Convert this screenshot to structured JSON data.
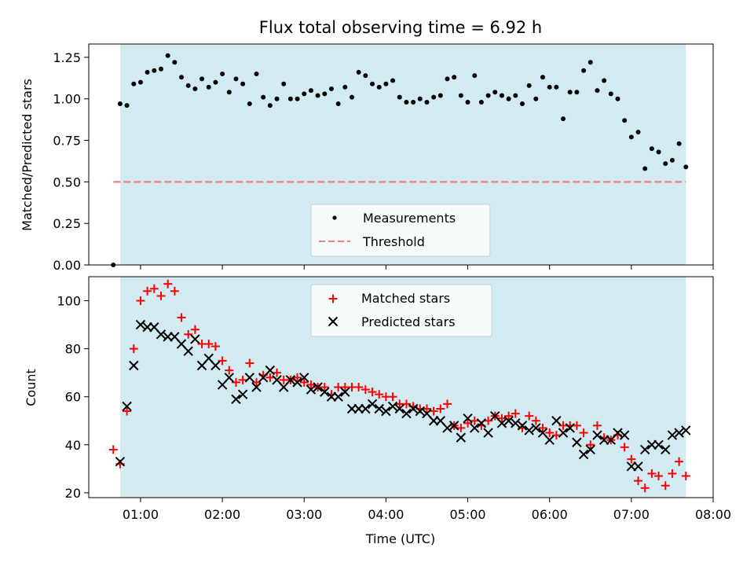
{
  "title": "Flux total observing time = 6.92 h",
  "colors": {
    "background": "#ffffff",
    "shade": "#add8e6",
    "measurement": "#000000",
    "threshold": "#f08080",
    "matched": "#ff0000",
    "predicted": "#000000"
  },
  "chart_data": [
    {
      "type": "scatter",
      "title": "Flux total observing time = 6.92 h",
      "xlabel": "",
      "ylabel": "Matched/Predicted stars",
      "xlim": [
        "00:22",
        "08:00"
      ],
      "ylim": [
        0,
        1.33
      ],
      "x_ticks": [],
      "y_ticks": [
        {
          "value": 0.0,
          "label": "0.00"
        },
        {
          "value": 0.25,
          "label": "0.25"
        },
        {
          "value": 0.5,
          "label": "0.50"
        },
        {
          "value": 0.75,
          "label": "0.75"
        },
        {
          "value": 1.0,
          "label": "1.00"
        },
        {
          "value": 1.25,
          "label": "1.25"
        }
      ],
      "shaded_span": {
        "x": [
          "00:45",
          "07:40"
        ],
        "color": "#add8e6"
      },
      "legend": {
        "position": "lower center",
        "entries": [
          "Measurements",
          "Threshold"
        ]
      },
      "series": [
        {
          "name": "Measurements",
          "marker": "dot",
          "color": "#000000",
          "x": [
            "00:40",
            "00:45",
            "00:50",
            "00:55",
            "01:00",
            "01:05",
            "01:10",
            "01:15",
            "01:20",
            "01:25",
            "01:30",
            "01:35",
            "01:40",
            "01:45",
            "01:50",
            "01:55",
            "02:00",
            "02:05",
            "02:10",
            "02:15",
            "02:20",
            "02:25",
            "02:30",
            "02:35",
            "02:40",
            "02:45",
            "02:50",
            "02:55",
            "03:00",
            "03:05",
            "03:10",
            "03:15",
            "03:20",
            "03:25",
            "03:30",
            "03:35",
            "03:40",
            "03:45",
            "03:50",
            "03:55",
            "04:00",
            "04:05",
            "04:10",
            "04:15",
            "04:20",
            "04:25",
            "04:30",
            "04:35",
            "04:40",
            "04:45",
            "04:50",
            "04:55",
            "05:00",
            "05:05",
            "05:10",
            "05:15",
            "05:20",
            "05:25",
            "05:30",
            "05:35",
            "05:40",
            "05:45",
            "05:50",
            "05:55",
            "06:00",
            "06:05",
            "06:10",
            "06:15",
            "06:20",
            "06:25",
            "06:30",
            "06:35",
            "06:40",
            "06:45",
            "06:50",
            "06:55",
            "07:00",
            "07:05",
            "07:10",
            "07:15",
            "07:20",
            "07:25",
            "07:30",
            "07:35",
            "07:40"
          ],
          "y": [
            0.0,
            0.97,
            0.96,
            1.09,
            1.1,
            1.16,
            1.17,
            1.18,
            1.26,
            1.22,
            1.13,
            1.08,
            1.06,
            1.12,
            1.07,
            1.1,
            1.15,
            1.04,
            1.12,
            1.09,
            0.97,
            1.15,
            1.01,
            0.96,
            1.0,
            1.09,
            1.0,
            1.0,
            1.03,
            1.05,
            1.02,
            1.03,
            1.06,
            0.97,
            1.07,
            1.01,
            1.16,
            1.14,
            1.09,
            1.07,
            1.09,
            1.11,
            1.01,
            0.98,
            0.98,
            1.0,
            0.98,
            1.01,
            1.02,
            1.12,
            1.13,
            1.02,
            0.98,
            1.14,
            0.98,
            1.02,
            1.04,
            1.02,
            1.0,
            1.02,
            0.97,
            1.08,
            1.0,
            1.13,
            1.07,
            1.07,
            0.88,
            1.04,
            1.04,
            1.17,
            1.22,
            1.05,
            1.11,
            1.03,
            1.0,
            0.87,
            0.77,
            0.8,
            0.58,
            0.7,
            0.68,
            0.61,
            0.63,
            0.73,
            0.59
          ]
        },
        {
          "name": "Threshold",
          "style": "dashed",
          "color": "#f08080",
          "x": [
            "00:40",
            "07:40"
          ],
          "y": [
            0.5,
            0.5
          ]
        }
      ]
    },
    {
      "type": "scatter",
      "title": "",
      "xlabel": "Time (UTC)",
      "ylabel": "Count",
      "xlim": [
        "00:22",
        "08:00"
      ],
      "ylim": [
        18,
        110
      ],
      "x_ticks": [
        "01:00",
        "02:00",
        "03:00",
        "04:00",
        "05:00",
        "06:00",
        "07:00",
        "08:00"
      ],
      "y_ticks": [
        {
          "value": 20,
          "label": "20"
        },
        {
          "value": 40,
          "label": "40"
        },
        {
          "value": 60,
          "label": "60"
        },
        {
          "value": 80,
          "label": "80"
        },
        {
          "value": 100,
          "label": "100"
        }
      ],
      "shaded_span": {
        "x": [
          "00:45",
          "07:40"
        ],
        "color": "#add8e6"
      },
      "legend": {
        "position": "upper center",
        "entries": [
          "Matched stars",
          "Predicted stars"
        ]
      },
      "series": [
        {
          "name": "Matched stars",
          "marker": "plus",
          "color": "#ff0000",
          "x": [
            "00:40",
            "00:45",
            "00:50",
            "00:55",
            "01:00",
            "01:05",
            "01:10",
            "01:15",
            "01:20",
            "01:25",
            "01:30",
            "01:35",
            "01:40",
            "01:45",
            "01:50",
            "01:55",
            "02:00",
            "02:05",
            "02:10",
            "02:15",
            "02:20",
            "02:25",
            "02:30",
            "02:35",
            "02:40",
            "02:45",
            "02:50",
            "02:55",
            "03:00",
            "03:05",
            "03:10",
            "03:15",
            "03:20",
            "03:25",
            "03:30",
            "03:35",
            "03:40",
            "03:45",
            "03:50",
            "03:55",
            "04:00",
            "04:05",
            "04:10",
            "04:15",
            "04:20",
            "04:25",
            "04:30",
            "04:35",
            "04:40",
            "04:45",
            "04:50",
            "04:55",
            "05:00",
            "05:05",
            "05:10",
            "05:15",
            "05:20",
            "05:25",
            "05:30",
            "05:35",
            "05:40",
            "05:45",
            "05:50",
            "05:55",
            "06:00",
            "06:05",
            "06:10",
            "06:15",
            "06:20",
            "06:25",
            "06:30",
            "06:35",
            "06:40",
            "06:45",
            "06:50",
            "06:55",
            "07:00",
            "07:05",
            "07:10",
            "07:15",
            "07:20",
            "07:25",
            "07:30",
            "07:35",
            "07:40"
          ],
          "y": [
            38,
            32,
            54,
            80,
            100,
            104,
            105,
            102,
            107,
            104,
            93,
            86,
            88,
            82,
            82,
            81,
            75,
            71,
            66,
            67,
            74,
            66,
            69,
            68,
            70,
            67,
            67,
            68,
            66,
            65,
            64,
            64,
            61,
            64,
            64,
            64,
            64,
            63,
            62,
            61,
            60,
            60,
            57,
            57,
            56,
            55,
            55,
            54,
            55,
            57,
            48,
            47,
            49,
            50,
            48,
            50,
            52,
            51,
            52,
            53,
            47,
            52,
            50,
            47,
            45,
            44,
            48,
            48,
            48,
            45,
            40,
            48,
            43,
            42,
            44,
            39,
            34,
            25,
            22,
            28,
            27,
            23,
            28,
            33,
            27
          ]
        },
        {
          "name": "Predicted stars",
          "marker": "x",
          "color": "#000000",
          "x": [
            "00:45",
            "00:50",
            "00:55",
            "01:00",
            "01:05",
            "01:10",
            "01:15",
            "01:20",
            "01:25",
            "01:30",
            "01:35",
            "01:40",
            "01:45",
            "01:50",
            "01:55",
            "02:00",
            "02:05",
            "02:10",
            "02:15",
            "02:20",
            "02:25",
            "02:30",
            "02:35",
            "02:40",
            "02:45",
            "02:50",
            "02:55",
            "03:00",
            "03:05",
            "03:10",
            "03:15",
            "03:20",
            "03:25",
            "03:30",
            "03:35",
            "03:40",
            "03:45",
            "03:50",
            "03:55",
            "04:00",
            "04:05",
            "04:10",
            "04:15",
            "04:20",
            "04:25",
            "04:30",
            "04:35",
            "04:40",
            "04:45",
            "04:50",
            "04:55",
            "05:00",
            "05:05",
            "05:10",
            "05:15",
            "05:20",
            "05:25",
            "05:30",
            "05:35",
            "05:40",
            "05:45",
            "05:50",
            "05:55",
            "06:00",
            "06:05",
            "06:10",
            "06:15",
            "06:20",
            "06:25",
            "06:30",
            "06:35",
            "06:40",
            "06:45",
            "06:50",
            "06:55",
            "07:00",
            "07:05",
            "07:10",
            "07:15",
            "07:20",
            "07:25",
            "07:30",
            "07:35",
            "07:40"
          ],
          "y": [
            33,
            56,
            73,
            90,
            89,
            89,
            86,
            85,
            85,
            82,
            79,
            84,
            73,
            76,
            73,
            65,
            68,
            59,
            61,
            68,
            64,
            68,
            71,
            67,
            64,
            67,
            66,
            68,
            63,
            64,
            62,
            60,
            60,
            62,
            55,
            55,
            55,
            57,
            55,
            54,
            56,
            55,
            53,
            55,
            54,
            53,
            50,
            50,
            47,
            48,
            43,
            51,
            47,
            49,
            45,
            52,
            49,
            50,
            49,
            48,
            46,
            47,
            45,
            42,
            50,
            45,
            47,
            41,
            36,
            38,
            44,
            42,
            42,
            45,
            44,
            31,
            31,
            38,
            40,
            40,
            38,
            44,
            45,
            46
          ]
        }
      ]
    }
  ]
}
